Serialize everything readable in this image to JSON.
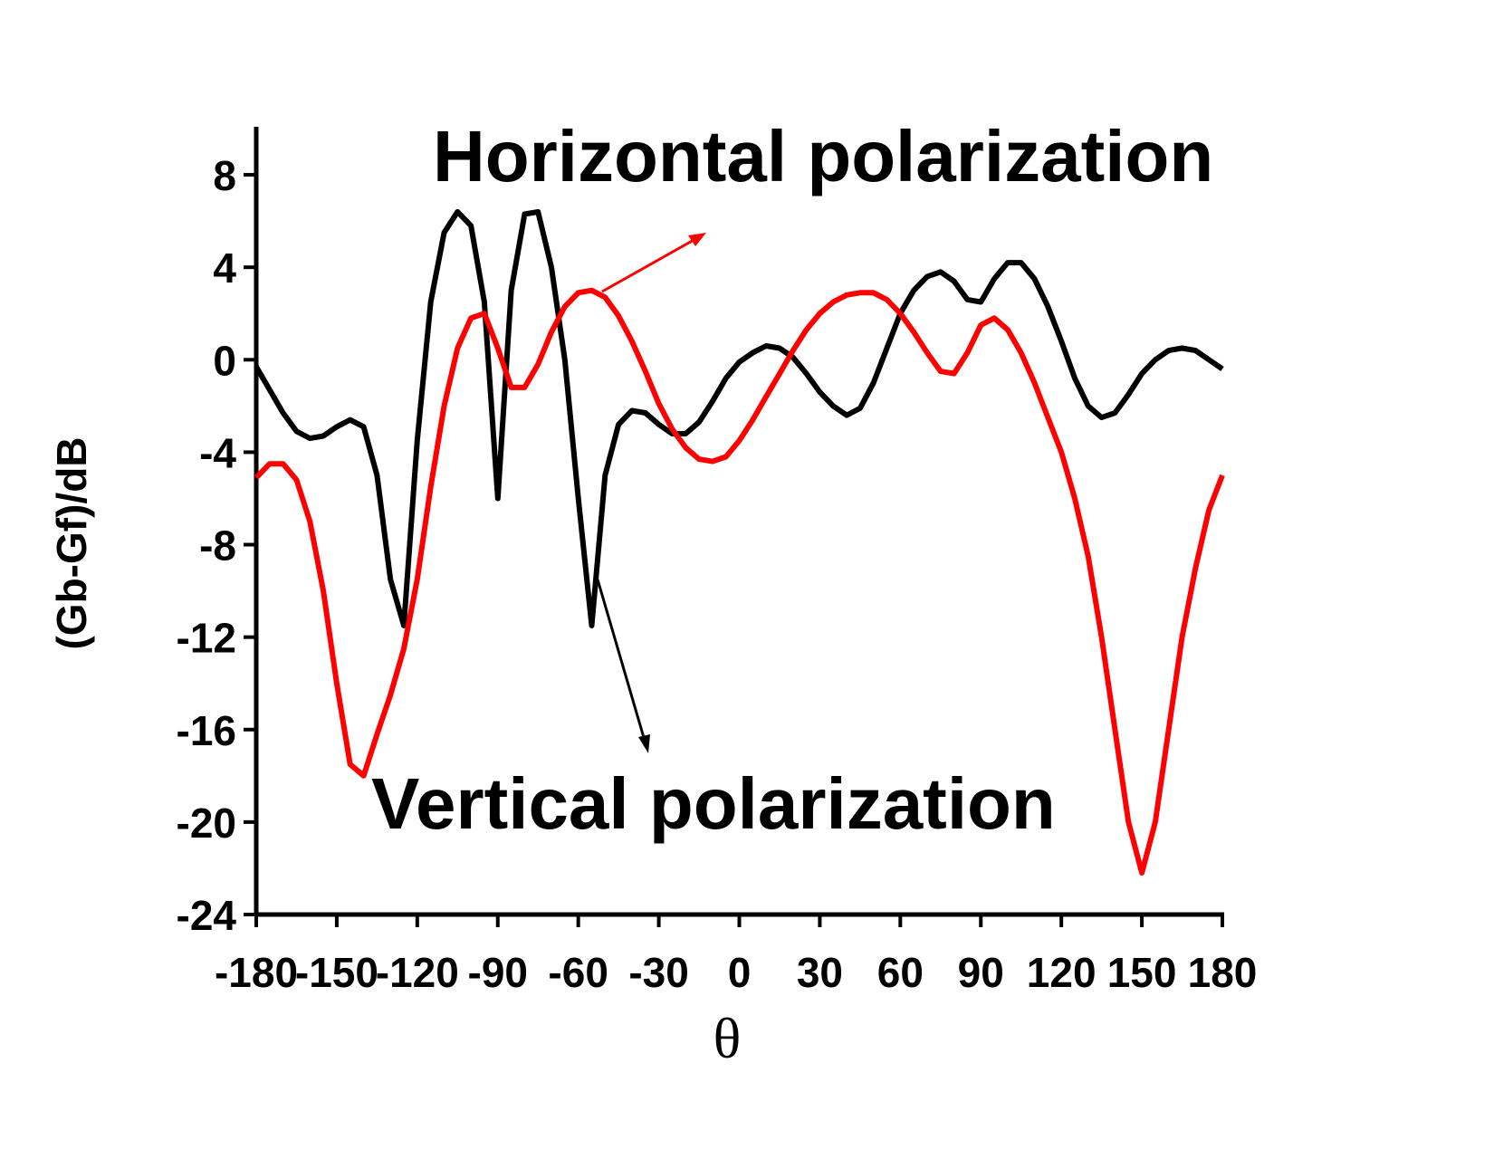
{
  "chart_data": {
    "type": "line",
    "x_label": "θ",
    "y_label": "(Gb-Gf)/dB",
    "x": [
      -180,
      -175,
      -170,
      -165,
      -160,
      -155,
      -150,
      -145,
      -140,
      -135,
      -130,
      -125,
      -120,
      -115,
      -110,
      -105,
      -100,
      -95,
      -90,
      -85,
      -80,
      -75,
      -70,
      -65,
      -60,
      -55,
      -50,
      -45,
      -40,
      -35,
      -30,
      -25,
      -20,
      -15,
      -10,
      -5,
      0,
      5,
      10,
      15,
      20,
      25,
      30,
      35,
      40,
      45,
      50,
      55,
      60,
      65,
      70,
      75,
      80,
      85,
      90,
      95,
      100,
      105,
      110,
      115,
      120,
      125,
      130,
      135,
      140,
      145,
      150,
      155,
      160,
      165,
      170,
      175,
      180
    ],
    "series": [
      {
        "name": "Vertical polarization",
        "color": "#000000",
        "values": [
          -0.3,
          -1.3,
          -2.3,
          -3.1,
          -3.4,
          -3.3,
          -2.9,
          -2.6,
          -2.9,
          -5.0,
          -9.5,
          -11.5,
          -3.5,
          2.5,
          5.5,
          6.4,
          5.8,
          2.5,
          -6.0,
          3.0,
          6.3,
          6.4,
          4.0,
          0,
          -6,
          -11.5,
          -5,
          -2.8,
          -2.2,
          -2.3,
          -2.8,
          -3.2,
          -3.2,
          -2.7,
          -1.8,
          -0.8,
          -0.1,
          0.3,
          0.6,
          0.5,
          0.1,
          -0.6,
          -1.4,
          -2.0,
          -2.4,
          -2.1,
          -1.0,
          0.5,
          2.0,
          3.0,
          3.6,
          3.8,
          3.4,
          2.6,
          2.5,
          3.5,
          4.2,
          4.2,
          3.5,
          2.3,
          0.8,
          -0.8,
          -2.0,
          -2.5,
          -2.3,
          -1.5,
          -0.6,
          0.0,
          0.4,
          0.5,
          0.4,
          0.0,
          -0.4
        ]
      },
      {
        "name": "Horizontal polarization",
        "color": "#ff0000",
        "values": [
          -5.1,
          -4.5,
          -4.5,
          -5.2,
          -7.0,
          -10.0,
          -14.0,
          -17.5,
          -18.0,
          -16.2,
          -14.5,
          -12.5,
          -9.5,
          -5.5,
          -2.0,
          0.5,
          1.8,
          2.0,
          0.5,
          -1.2,
          -1.2,
          -0.2,
          1.2,
          2.3,
          2.9,
          3.0,
          2.7,
          1.9,
          0.8,
          -0.5,
          -1.9,
          -3.0,
          -3.8,
          -4.3,
          -4.4,
          -4.2,
          -3.5,
          -2.6,
          -1.6,
          -0.6,
          0.4,
          1.3,
          2.0,
          2.5,
          2.8,
          2.9,
          2.9,
          2.6,
          2.0,
          1.2,
          0.3,
          -0.5,
          -0.6,
          0.3,
          1.5,
          1.8,
          1.3,
          0.3,
          -1.0,
          -2.5,
          -4.0,
          -6.0,
          -8.5,
          -12.0,
          -16.0,
          -20.0,
          -22.2,
          -20.0,
          -16.0,
          -12.0,
          -9.0,
          -6.5,
          -5.0
        ]
      }
    ],
    "xlim": [
      -180,
      180
    ],
    "xticks": [
      -180,
      -150,
      -120,
      -90,
      -60,
      -30,
      0,
      30,
      60,
      90,
      120,
      150,
      180
    ],
    "ylim": [
      -24,
      10
    ],
    "yticks": [
      -24,
      -20,
      -16,
      -12,
      -8,
      -4,
      0,
      4,
      8
    ]
  }
}
